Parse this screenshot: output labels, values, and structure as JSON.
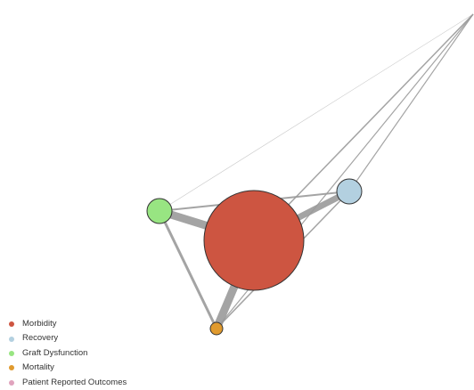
{
  "nodes": [
    {
      "id": "morbidity",
      "label": "Morbidity",
      "color": "#cd5541",
      "size": 56
    },
    {
      "id": "recovery",
      "label": "Recovery",
      "color": "#b3d0e0",
      "size": 14
    },
    {
      "id": "graft",
      "label": "Graft Dysfunction",
      "color": "#98e582",
      "size": 14
    },
    {
      "id": "mortality",
      "label": "Mortality",
      "color": "#e09a2e",
      "size": 7
    },
    {
      "id": "pro",
      "label": "Patient Reported Outcomes",
      "color": "#e0a3bd",
      "size": 0
    }
  ],
  "edges": [
    {
      "from": "graft",
      "to": "morbidity",
      "weight": 9
    },
    {
      "from": "recovery",
      "to": "morbidity",
      "weight": 7
    },
    {
      "from": "mortality",
      "to": "morbidity",
      "weight": 9
    },
    {
      "from": "graft",
      "to": "recovery",
      "weight": 2
    },
    {
      "from": "graft",
      "to": "mortality",
      "weight": 3
    },
    {
      "from": "mortality",
      "to": "recovery",
      "weight": 1.5
    },
    {
      "from": "pro",
      "to": "morbidity",
      "weight": 1.5
    },
    {
      "from": "pro",
      "to": "recovery",
      "weight": 1.2
    },
    {
      "from": "pro",
      "to": "mortality",
      "weight": 1.2
    },
    {
      "from": "pro",
      "to": "graft",
      "weight": 0.6
    }
  ],
  "legend": {
    "items": [
      {
        "label": "Morbidity",
        "color": "#cd5541"
      },
      {
        "label": "Recovery",
        "color": "#b3d0e0"
      },
      {
        "label": "Graft Dysfunction",
        "color": "#98e582"
      },
      {
        "label": "Mortality",
        "color": "#e09a2e"
      },
      {
        "label": "Patient Reported Outcomes",
        "color": "#e0a3bd"
      }
    ]
  },
  "colors": {
    "edge": "#9a9a9a",
    "node_stroke": "#333333"
  }
}
